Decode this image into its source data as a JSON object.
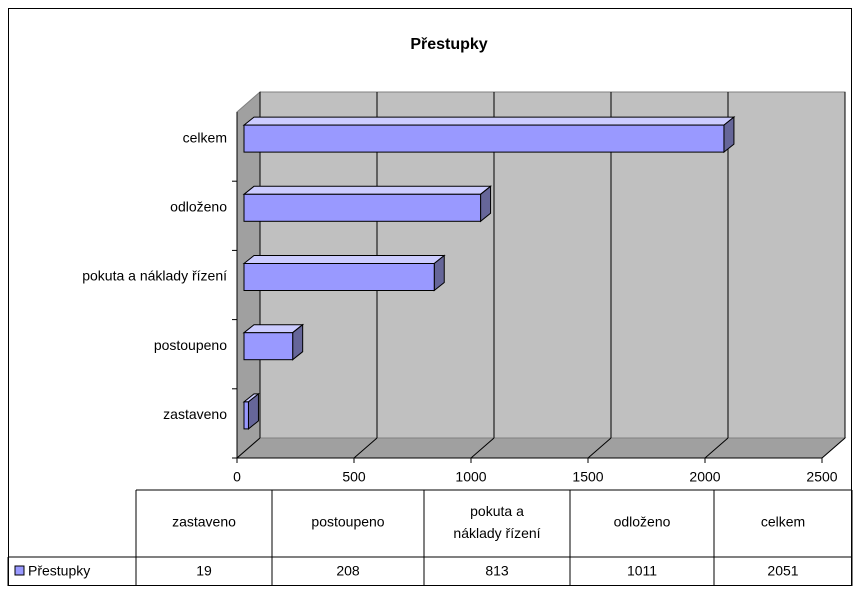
{
  "chart_data": {
    "type": "bar",
    "orientation": "horizontal",
    "title": "Přestupky",
    "categories": [
      "zastaveno",
      "postoupeno",
      "pokuta a náklady řízení",
      "odloženo",
      "celkem"
    ],
    "series": [
      {
        "name": "Přestupky",
        "color": "#9999ff",
        "values": [
          19,
          208,
          813,
          1011,
          2051
        ]
      }
    ],
    "xlim": [
      0,
      2500
    ],
    "xticks": [
      0,
      500,
      1000,
      1500,
      2000,
      2500
    ],
    "grid": true,
    "data_table": true
  }
}
